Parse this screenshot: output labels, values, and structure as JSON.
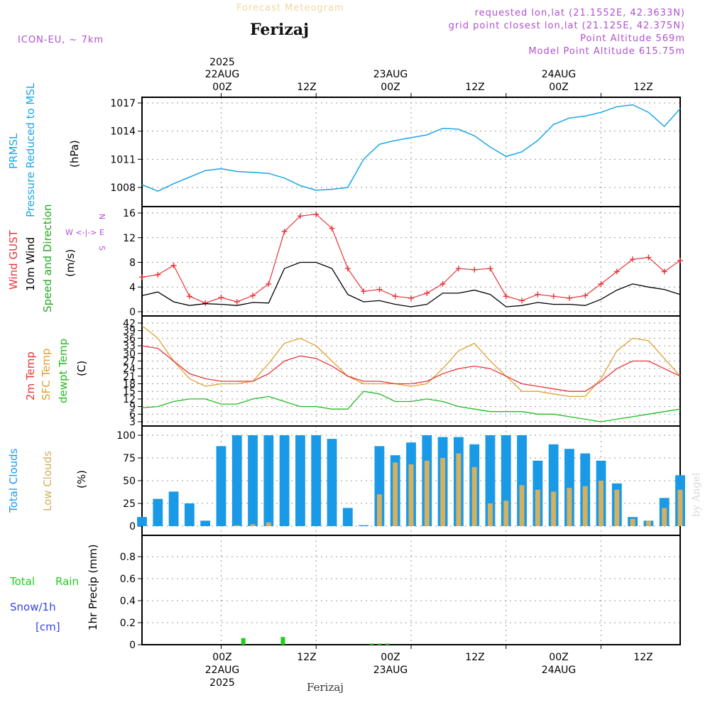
{
  "header": {
    "app_title": "Forecast Meteogram",
    "location": "Ferizaj",
    "model": "ICON-EU, ~ 7km",
    "requested": "requested lon,lat (21.1552E, 42.3633N)",
    "grid_point": "grid point closest lon,lat (21.125E, 42.375N)",
    "point_alt": "Point Altitude 569m",
    "model_alt": "Model Point Altitude 615.75m",
    "watermark": "by Angel",
    "footer_location": "Ferizaj"
  },
  "time_axis": {
    "year": "2025",
    "day_labels": [
      "22AUG",
      "23AUG",
      "24AUG"
    ],
    "hour_labels": [
      "00Z",
      "12Z",
      "00Z",
      "12Z",
      "00Z",
      "12Z"
    ]
  },
  "panels": {
    "pressure": {
      "label_a": "PRMSL",
      "label_b": "Pressure Reduced to MSL",
      "unit": "(hPa)",
      "color": "#1aa6e6"
    },
    "wind": {
      "label_gust": "Wind GUST",
      "label_wind": "10m Wind",
      "label_dir": "Speed and Direction",
      "unit": "(m/s)",
      "compass_n": "N",
      "compass_s": "S",
      "compass_we": "W <-|-> E"
    },
    "temp": {
      "label_2m": "2m Temp",
      "label_sfc": "SFC Temp",
      "label_dew": "dewpt Temp",
      "unit": "(C)"
    },
    "clouds": {
      "label_total": "Total Clouds",
      "label_low": "Low Clouds",
      "unit": "(%)"
    },
    "precip": {
      "label_rain_a": "Total",
      "label_rain_b": "Rain",
      "label_snow": "Snow/1h",
      "label_snow_unit": "[cm]",
      "unit": "1hr Precip (mm)"
    }
  },
  "colors": {
    "pressure": "#1aa6e6",
    "gust": "#e8343a",
    "wind": "#000000",
    "t2m": "#e8343a",
    "tsfc": "#e0a030",
    "dew": "#22bb22",
    "total_clouds": "#1a9ae6",
    "low_clouds": "#d4b060",
    "rain": "#22cc22",
    "snow": "#3344ee",
    "meta": "#b050d0"
  },
  "chart_data": [
    {
      "type": "line",
      "name": "pressure",
      "x_range_hours": [
        -10,
        58
      ],
      "x_hours": [
        -10,
        -8,
        -6,
        -4,
        -2,
        0,
        2,
        4,
        6,
        8,
        10,
        12,
        14,
        16,
        18,
        20,
        22,
        24,
        26,
        28,
        30,
        32,
        34,
        36,
        38,
        40,
        42,
        44,
        46,
        48,
        50,
        52,
        54,
        56,
        58
      ],
      "series": [
        {
          "values": [
            1008.3,
            1007.6,
            1008.4,
            1009.1,
            1009.8,
            1010.0,
            1009.7,
            1009.6,
            1009.5,
            1009.0,
            1008.2,
            1007.7,
            1007.8,
            1008.0,
            1011.0,
            1012.6,
            1013.0,
            1013.3,
            1013.6,
            1014.3,
            1014.2,
            1013.5,
            1012.3,
            1011.3,
            1011.8,
            1013.0,
            1014.7,
            1015.4,
            1015.6,
            1016.0,
            1016.6,
            1016.8,
            1016.0,
            1014.5,
            1016.4
          ]
        }
      ],
      "ylim": [
        1006,
        1018
      ],
      "yticks": [
        1008,
        1011,
        1014,
        1017
      ]
    },
    {
      "type": "line",
      "name": "wind",
      "x_range_hours": [
        -10,
        58
      ],
      "x_hours": [
        -10,
        -8,
        -6,
        -4,
        -2,
        0,
        2,
        4,
        6,
        8,
        10,
        12,
        14,
        16,
        18,
        20,
        22,
        24,
        26,
        28,
        30,
        32,
        34,
        36,
        38,
        40,
        42,
        44,
        46,
        48,
        50,
        52,
        54,
        56,
        58
      ],
      "series": [
        {
          "values": [
            5.6,
            6.0,
            7.5,
            2.5,
            1.4,
            2.3,
            1.6,
            2.6,
            4.5,
            13.0,
            15.5,
            15.8,
            13.5,
            7.0,
            3.3,
            3.6,
            2.5,
            2.2,
            3.0,
            4.5,
            7.0,
            6.8,
            7.0,
            2.5,
            1.8,
            2.8,
            2.5,
            2.2,
            2.6,
            4.5,
            6.5,
            8.5,
            8.8,
            6.5,
            8.3
          ]
        },
        {
          "values": [
            2.6,
            3.2,
            1.6,
            1.0,
            1.3,
            1.2,
            1.0,
            1.5,
            1.4,
            7.0,
            8.0,
            8.0,
            7.0,
            2.8,
            1.6,
            1.8,
            1.2,
            0.8,
            1.2,
            3.0,
            3.0,
            3.5,
            2.8,
            0.8,
            1.0,
            1.5,
            1.2,
            1.2,
            1.0,
            2.0,
            3.5,
            4.5,
            4.0,
            3.6,
            2.8
          ]
        }
      ],
      "ylim": [
        0,
        17
      ],
      "yticks": [
        0,
        4,
        8,
        12,
        16
      ]
    },
    {
      "type": "line",
      "name": "temperature",
      "x_range_hours": [
        -10,
        58
      ],
      "x_hours": [
        -10,
        -8,
        -6,
        -4,
        -2,
        0,
        2,
        4,
        6,
        8,
        10,
        12,
        14,
        16,
        18,
        20,
        22,
        24,
        26,
        28,
        30,
        32,
        34,
        36,
        38,
        40,
        42,
        44,
        46,
        48,
        50,
        52,
        54,
        56,
        58
      ],
      "series": [
        {
          "values": [
            33,
            32,
            27,
            22,
            20,
            19,
            19,
            19,
            22,
            27,
            29,
            28,
            25,
            21,
            19,
            19,
            18,
            18,
            19,
            22,
            24,
            25,
            24,
            21,
            18,
            17,
            16,
            15,
            15,
            19,
            24,
            27,
            27,
            24,
            21
          ]
        },
        {
          "values": [
            41,
            36,
            27,
            20,
            17,
            18,
            18,
            19,
            26,
            34,
            36,
            33,
            27,
            21,
            18,
            18,
            18,
            17,
            18,
            24,
            31,
            34,
            27,
            21,
            15,
            15,
            14,
            13,
            13,
            20,
            31,
            36,
            35,
            28,
            21
          ]
        },
        {
          "values": [
            8.5,
            9,
            11,
            12,
            12,
            10,
            10,
            12,
            13,
            11,
            9,
            9,
            8,
            8,
            15,
            14,
            11,
            11,
            12,
            11,
            9,
            8,
            7,
            7,
            7,
            6,
            6,
            5,
            4,
            3,
            4,
            5,
            6,
            7,
            8
          ]
        }
      ],
      "ylim": [
        2,
        43
      ],
      "yticks": [
        3,
        6,
        9,
        12,
        15,
        18,
        21,
        24,
        27,
        30,
        33,
        36,
        39,
        42
      ]
    },
    {
      "type": "bar",
      "name": "clouds",
      "x_range_hours": [
        -10,
        58
      ],
      "x_hours": [
        -10,
        -8,
        -6,
        -4,
        -2,
        0,
        2,
        4,
        6,
        8,
        10,
        12,
        14,
        16,
        18,
        20,
        22,
        24,
        26,
        28,
        30,
        32,
        34,
        36,
        38,
        40,
        42,
        44,
        46,
        48,
        50,
        52,
        54,
        56,
        58
      ],
      "series": [
        {
          "values": [
            10,
            30,
            38,
            25,
            6,
            88,
            100,
            100,
            100,
            100,
            100,
            100,
            96,
            20,
            1,
            88,
            78,
            92,
            100,
            98,
            98,
            90,
            100,
            100,
            100,
            72,
            90,
            85,
            80,
            72,
            47,
            10,
            6,
            31,
            56
          ]
        },
        {
          "values": [
            0,
            0,
            0,
            0,
            0,
            0,
            1,
            2,
            4,
            0,
            0,
            0,
            0,
            0,
            0,
            35,
            70,
            68,
            72,
            75,
            80,
            65,
            25,
            28,
            45,
            40,
            38,
            42,
            44,
            50,
            40,
            8,
            6,
            20,
            40
          ]
        }
      ],
      "ylim": [
        0,
        100
      ],
      "yticks": [
        0,
        25,
        50,
        75,
        100
      ]
    },
    {
      "type": "bar",
      "name": "precipitation",
      "x_range_hours": [
        -10,
        58
      ],
      "x_hours": [
        2.8,
        7.8,
        19,
        20,
        21
      ],
      "series": [
        {
          "values": [
            0.06,
            0.07,
            0.01,
            0.01,
            0.01
          ]
        }
      ],
      "ylim": [
        0,
        1.0
      ],
      "yticks": [
        0,
        0.2,
        0.4,
        0.6,
        0.8
      ]
    }
  ]
}
